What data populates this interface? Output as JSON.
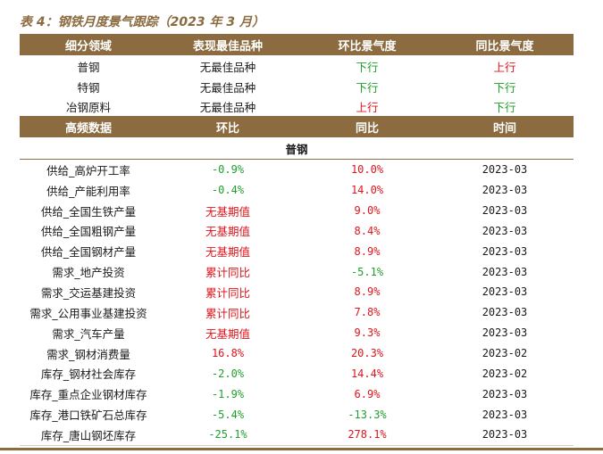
{
  "caption": "表 4：钢铁月度景气跟踪（2023 年 3 月）",
  "colors": {
    "header_bg": "#8b6b3f",
    "up": "#e0141c",
    "down": "#20a02c"
  },
  "table1": {
    "headers": [
      "细分领域",
      "表现最佳品种",
      "环比景气度",
      "同比景气度"
    ],
    "rows": [
      {
        "segment": "普钢",
        "best": "无最佳品种",
        "mom": "下行",
        "yoy": "上行"
      },
      {
        "segment": "特钢",
        "best": "无最佳品种",
        "mom": "下行",
        "yoy": "下行"
      },
      {
        "segment": "冶钢原料",
        "best": "无最佳品种",
        "mom": "上行",
        "yoy": "下行"
      }
    ]
  },
  "table2": {
    "headers": [
      "高频数据",
      "环比",
      "同比",
      "时间"
    ],
    "section": "普钢",
    "rows": [
      {
        "name": "供给_高炉开工率",
        "mom": "-0.9%",
        "yoy": "10.0%",
        "date": "2023-03"
      },
      {
        "name": "供给_产能利用率",
        "mom": "-0.4%",
        "yoy": "14.0%",
        "date": "2023-03"
      },
      {
        "name": "供给_全国生铁产量",
        "mom": "无基期值",
        "yoy": "9.0%",
        "date": "2023-03"
      },
      {
        "name": "供给_全国粗钢产量",
        "mom": "无基期值",
        "yoy": "8.4%",
        "date": "2023-03"
      },
      {
        "name": "供给_全国钢材产量",
        "mom": "无基期值",
        "yoy": "8.9%",
        "date": "2023-03"
      },
      {
        "name": "需求_地产投资",
        "mom": "累计同比",
        "yoy": "-5.1%",
        "date": "2023-03"
      },
      {
        "name": "需求_交运基建投资",
        "mom": "累计同比",
        "yoy": "8.9%",
        "date": "2023-03"
      },
      {
        "name": "需求_公用事业基建投资",
        "mom": "累计同比",
        "yoy": "7.8%",
        "date": "2023-03"
      },
      {
        "name": "需求_汽车产量",
        "mom": "无基期值",
        "yoy": "9.3%",
        "date": "2023-03"
      },
      {
        "name": "需求_钢材消费量",
        "mom": "16.8%",
        "yoy": "20.3%",
        "date": "2023-02"
      },
      {
        "name": "库存_钢材社会库存",
        "mom": "-2.0%",
        "yoy": "14.4%",
        "date": "2023-02"
      },
      {
        "name": "库存_重点企业钢材库存",
        "mom": "-1.9%",
        "yoy": "6.9%",
        "date": "2023-03"
      },
      {
        "name": "库存_港口铁矿石总库存",
        "mom": "-5.4%",
        "yoy": "-13.3%",
        "date": "2023-03"
      },
      {
        "name": "库存_唐山钢坯库存",
        "mom": "-25.1%",
        "yoy": "278.1%",
        "date": "2023-03"
      }
    ]
  }
}
